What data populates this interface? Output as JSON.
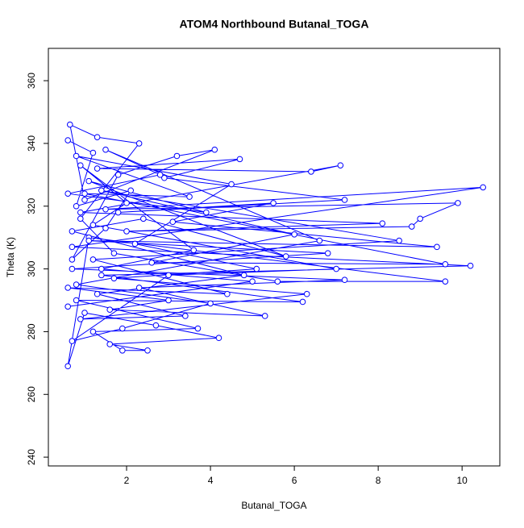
{
  "chart_data": {
    "type": "point-line",
    "title": "ATOM4 Northbound Butanal_TOGA",
    "x_label": "Butanal_TOGA",
    "y_label": "Theta (K)",
    "color": "#0000ff",
    "xlim": [
      0.135,
      10.9
    ],
    "ylim": [
      237.2,
      370.3
    ],
    "xticks": [
      2,
      4,
      6,
      8,
      10
    ],
    "yticks": [
      240,
      260,
      280,
      300,
      320,
      340,
      360
    ],
    "x": [
      0.6,
      1.2,
      0.8,
      2.1,
      1.5,
      0.7,
      1.8,
      3.2,
      4.1,
      1.0,
      0.65,
      1.3,
      2.3,
      0.9,
      1.7,
      5.6,
      9.6,
      1.1,
      0.6,
      1.0,
      2.7,
      4.2,
      1.6,
      2.5,
      1.9,
      1.2,
      3.7,
      0.8,
      6.2,
      1.4,
      10.2,
      0.7,
      10.5,
      1.5,
      9.9,
      9,
      8.8,
      2.0,
      8.1,
      0.9,
      7.1,
      6.4,
      1.3,
      4.7,
      2.9,
      7.2,
      1.8,
      5.5,
      3.1,
      9.4,
      1.1,
      6.8,
      0.7,
      7.2,
      2.3,
      5.3,
      1.6,
      3.0,
      0.6,
      4.4,
      1.2,
      8.5,
      1.4,
      6.0,
      2.6,
      9.6,
      1.0,
      3.5,
      0.8,
      4.5,
      2.2,
      5.1,
      1.7,
      6.3,
      0.9,
      3.4,
      1.3,
      4.8,
      0.7,
      2.4,
      5.8,
      1.1,
      3.9,
      0.6,
      2.8,
      1.5,
      6.6,
      0.8,
      4.0,
      1.9,
      0.7,
      3.0,
      7.0,
      1.2,
      2.0,
      0.9,
      3.6,
      1.4,
      5.0,
      0.6
    ],
    "values": [
      341,
      337,
      320,
      325,
      313,
      303,
      330,
      336,
      338,
      322,
      346,
      342,
      340,
      316,
      305,
      296,
      296,
      310,
      269,
      286,
      282,
      278,
      276,
      274,
      274,
      280,
      281,
      290,
      289.5,
      298,
      301,
      307,
      326,
      319,
      321,
      316,
      313.5,
      312,
      314.5,
      318,
      333,
      331,
      332,
      335,
      329,
      322,
      318,
      321,
      315,
      307,
      309,
      305,
      300,
      296.5,
      294,
      285,
      287,
      290,
      294,
      292,
      303,
      309,
      325,
      311,
      302,
      301.5,
      324,
      323,
      336,
      327,
      308,
      300,
      297,
      292,
      284,
      285,
      292,
      298,
      312,
      316,
      304,
      328,
      318,
      324,
      330,
      338,
      309,
      295,
      289,
      281,
      277,
      298,
      300,
      314,
      321,
      333,
      306,
      300,
      296,
      288
    ]
  }
}
